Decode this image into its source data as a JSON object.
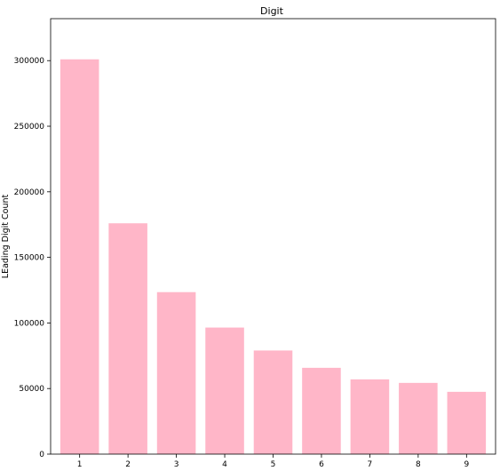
{
  "chart_data": {
    "type": "bar",
    "title": "Digit",
    "xlabel": "",
    "ylabel": "LEading Digit Count",
    "categories": [
      "1",
      "2",
      "3",
      "4",
      "5",
      "6",
      "7",
      "8",
      "9"
    ],
    "values": [
      301000,
      176000,
      123500,
      96500,
      79000,
      65800,
      57000,
      54300,
      47500
    ],
    "ylim": [
      0,
      332000
    ],
    "yticks": [
      0,
      50000,
      100000,
      150000,
      200000,
      250000,
      300000
    ],
    "ytick_labels": [
      "0",
      "50000",
      "100000",
      "150000",
      "200000",
      "250000",
      "300000"
    ],
    "bar_color": "#ffb6c8",
    "grid": false
  }
}
